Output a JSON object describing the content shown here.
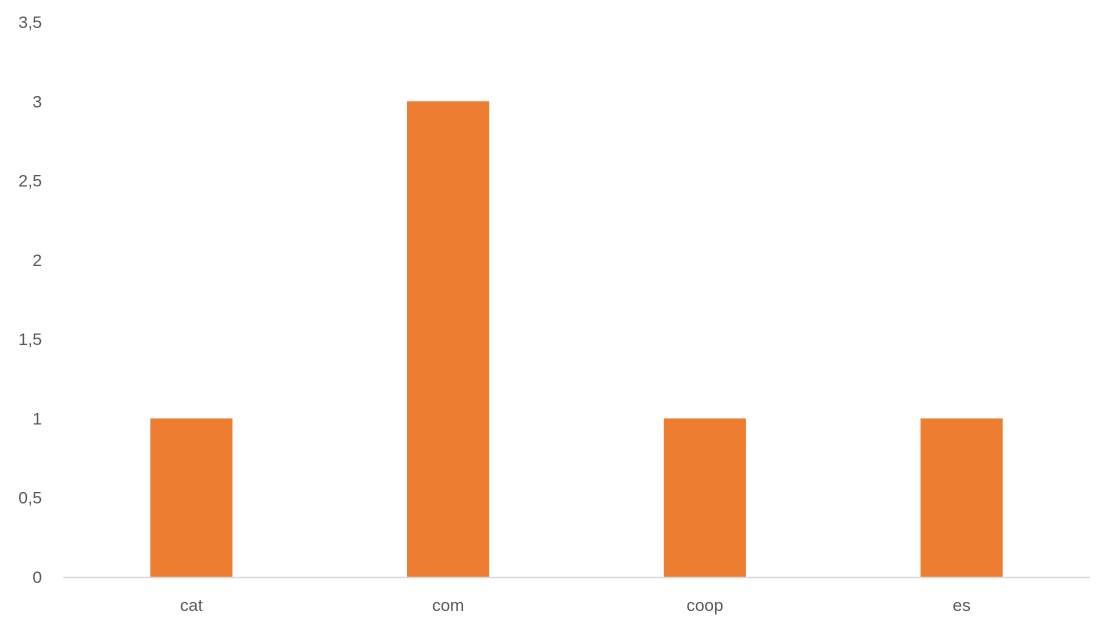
{
  "chart_data": {
    "type": "bar",
    "categories": [
      "cat",
      "com",
      "coop",
      "es"
    ],
    "values": [
      1,
      3,
      1,
      1
    ],
    "title": "",
    "xlabel": "",
    "ylabel": "",
    "ylim": [
      0,
      3.5
    ],
    "y_ticks": [
      "0",
      "0,5",
      "1",
      "1,5",
      "2",
      "2,5",
      "3",
      "3,5"
    ],
    "y_tick_values": [
      0,
      0.5,
      1,
      1.5,
      2,
      2.5,
      3,
      3.5
    ],
    "grid": false,
    "legend": "none",
    "bar_color": "#ED7D31",
    "axis_color": "#D9D9D9",
    "text_color": "#595959"
  }
}
